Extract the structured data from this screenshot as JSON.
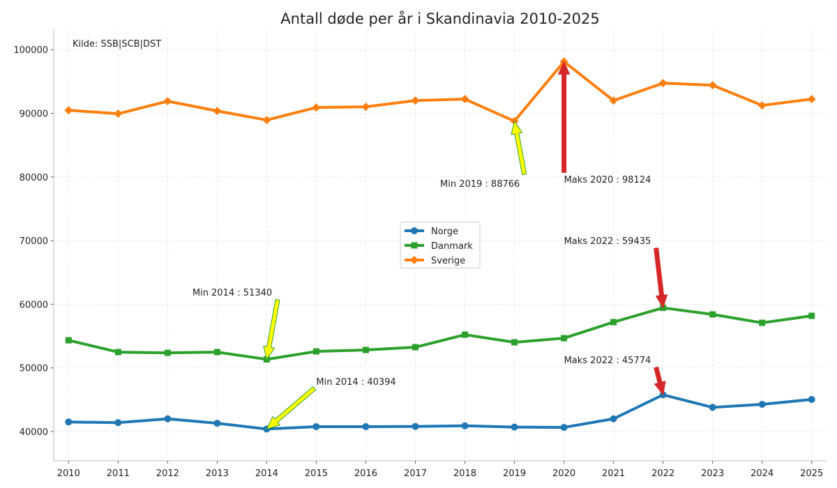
{
  "chart_data": {
    "type": "line",
    "title": "Antall døde per år i Skandinavia 2010-2025",
    "source_note": "Kilde: SSB|SCB|DST",
    "xlabel": "",
    "ylabel": "",
    "x": [
      2010,
      2011,
      2012,
      2013,
      2014,
      2015,
      2016,
      2017,
      2018,
      2019,
      2020,
      2021,
      2022,
      2023,
      2024,
      2025
    ],
    "xlim": [
      2009.7,
      2025.3
    ],
    "ylim": [
      35400,
      103200
    ],
    "yticks": [
      40000,
      50000,
      60000,
      70000,
      80000,
      90000,
      100000
    ],
    "grid": true,
    "legend_position": "center",
    "series": [
      {
        "name": "Norge",
        "color": "#1f77b4",
        "marker": "circle",
        "values": [
          41500,
          41400,
          42000,
          41300,
          40394,
          40770,
          40770,
          40800,
          40900,
          40700,
          40650,
          42000,
          45774,
          43800,
          44270,
          45040
        ]
      },
      {
        "name": "Danmark",
        "color": "#2ca02c",
        "marker": "square",
        "values": [
          54340,
          52480,
          52370,
          52480,
          51340,
          52590,
          52810,
          53250,
          55220,
          54020,
          54670,
          57190,
          59435,
          58400,
          57080,
          58180
        ]
      },
      {
        "name": "Sverige",
        "color": "#ff7f0e",
        "marker": "diamond",
        "values": [
          90480,
          89930,
          91900,
          90370,
          88940,
          90910,
          91020,
          92000,
          92230,
          88766,
          98124,
          92000,
          94740,
          94410,
          91240,
          92230
        ]
      }
    ],
    "annotations": [
      {
        "text": "Min 2019 : 88766",
        "kind": "min",
        "text_at": [
          2017.5,
          79000
        ],
        "arrow_from": [
          2019.2,
          80400
        ],
        "arrow_to": [
          2019,
          88766
        ]
      },
      {
        "text": "Maks 2020 : 98124",
        "kind": "max",
        "text_at": [
          2020,
          79650
        ],
        "arrow_from": [
          2020,
          80700
        ],
        "arrow_to": [
          2020,
          98124
        ]
      },
      {
        "text": "Maks 2022 : 59435",
        "kind": "max",
        "text_at": [
          2020,
          70000
        ],
        "arrow_from": [
          2021.86,
          68800
        ],
        "arrow_to": [
          2022,
          59435
        ]
      },
      {
        "text": "Min 2014 : 51340",
        "kind": "min",
        "text_at": [
          2012.5,
          61900
        ],
        "arrow_from": [
          2014.22,
          60700
        ],
        "arrow_to": [
          2014,
          51340
        ]
      },
      {
        "text": "Maks 2022 : 45774",
        "kind": "max",
        "text_at": [
          2020,
          51300
        ],
        "arrow_from": [
          2021.86,
          50070
        ],
        "arrow_to": [
          2022,
          45774
        ]
      },
      {
        "text": "Min 2014 : 40394",
        "kind": "min",
        "text_at": [
          2015,
          47900
        ],
        "arrow_from": [
          2014.96,
          46800
        ],
        "arrow_to": [
          2014,
          40394
        ]
      }
    ],
    "arrow_colors": {
      "max_fill": "#d62728",
      "min_fill": "#ffff00",
      "min_edge": "#2ca02c"
    }
  }
}
